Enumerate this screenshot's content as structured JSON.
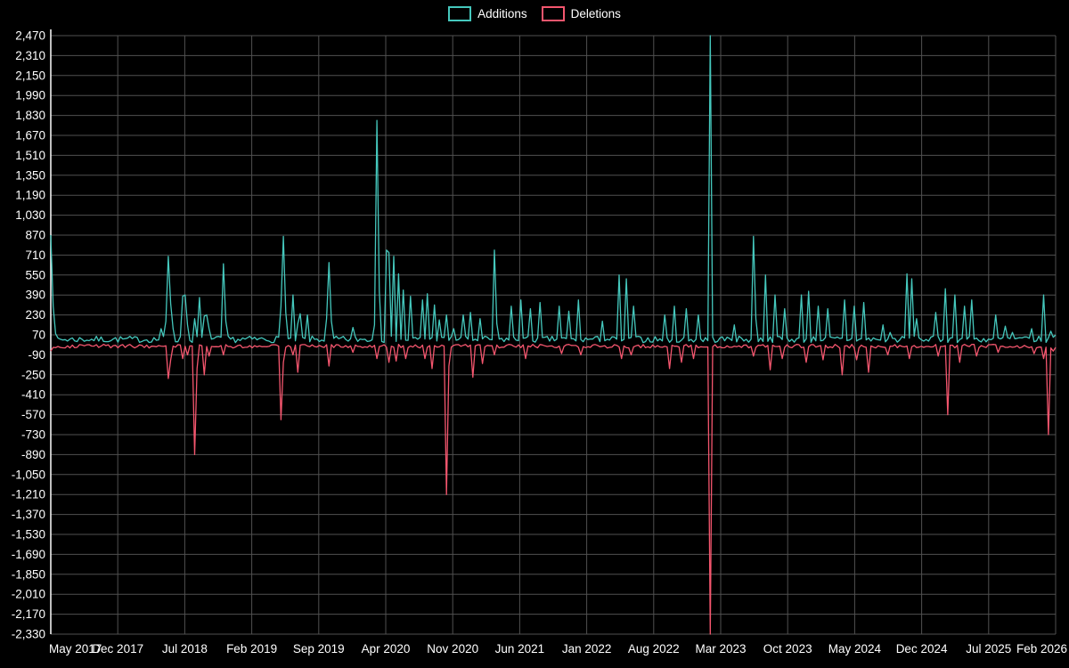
{
  "legend": {
    "items": [
      {
        "label": "Additions",
        "color": "#45c8bd"
      },
      {
        "label": "Deletions",
        "color": "#f4566e"
      }
    ]
  },
  "chart_data": {
    "type": "line",
    "title": "",
    "series_names": [
      "Additions",
      "Deletions"
    ],
    "x_tick_labels": [
      "May 2017",
      "Dec 2017",
      "Jul 2018",
      "Feb 2019",
      "Sep 2019",
      "Apr 2020",
      "Nov 2020",
      "Jun 2021",
      "Jan 2022",
      "Aug 2022",
      "Mar 2023",
      "Oct 2023",
      "May 2024",
      "Dec 2024",
      "Jul 2025",
      "Feb 2026"
    ],
    "y_ticks": [
      2470,
      2310,
      2150,
      1990,
      1830,
      1670,
      1510,
      1350,
      1190,
      1030,
      870,
      710,
      550,
      390,
      230,
      70,
      -90,
      -250,
      -410,
      -570,
      -730,
      -890,
      -1050,
      -1210,
      -1370,
      -1530,
      -1690,
      -1850,
      -2010,
      -2170,
      -2330
    ],
    "y_tick_labels": [
      "2,470",
      "2,310",
      "2,150",
      "1,990",
      "1,830",
      "1,670",
      "1,510",
      "1,350",
      "1,190",
      "1,030",
      "870",
      "710",
      "550",
      "390",
      "230",
      "70",
      "-90",
      "-250",
      "-410",
      "-570",
      "-730",
      "-890",
      "-1,050",
      "-1,210",
      "-1,370",
      "-1,530",
      "-1,690",
      "-1,850",
      "-2,010",
      "-2,170",
      "-2,330"
    ],
    "ylim": [
      -2330,
      2470
    ],
    "grid": true,
    "background": "#000000",
    "grid_color": "#515151",
    "axis_color": "#ffffff",
    "text_color": "#ffffff",
    "n_points": 420,
    "noise_seed": 7,
    "baseline": {
      "additions": [
        8,
        60
      ],
      "deletions": [
        -35,
        -6
      ]
    },
    "spikes_format": "[week_index, value] ; week 0 = May 2017, week 419 = Feb 2026",
    "series": [
      {
        "name": "Additions",
        "color": "#45c8bd",
        "spikes": [
          [
            0,
            870
          ],
          [
            1,
            300
          ],
          [
            2,
            80
          ],
          [
            46,
            120
          ],
          [
            48,
            180
          ],
          [
            49,
            700
          ],
          [
            50,
            320
          ],
          [
            51,
            120
          ],
          [
            55,
            380
          ],
          [
            56,
            390
          ],
          [
            57,
            150
          ],
          [
            60,
            200
          ],
          [
            62,
            370
          ],
          [
            64,
            220
          ],
          [
            65,
            230
          ],
          [
            66,
            120
          ],
          [
            72,
            640
          ],
          [
            73,
            180
          ],
          [
            96,
            300
          ],
          [
            97,
            860
          ],
          [
            98,
            250
          ],
          [
            101,
            390
          ],
          [
            103,
            160
          ],
          [
            104,
            240
          ],
          [
            107,
            230
          ],
          [
            115,
            200
          ],
          [
            116,
            650
          ],
          [
            117,
            180
          ],
          [
            126,
            130
          ],
          [
            135,
            150
          ],
          [
            136,
            1790
          ],
          [
            137,
            420
          ],
          [
            140,
            750
          ],
          [
            141,
            730
          ],
          [
            143,
            700
          ],
          [
            145,
            560
          ],
          [
            147,
            430
          ],
          [
            150,
            380
          ],
          [
            155,
            350
          ],
          [
            157,
            400
          ],
          [
            160,
            310
          ],
          [
            162,
            190
          ],
          [
            165,
            230
          ],
          [
            168,
            120
          ],
          [
            172,
            230
          ],
          [
            175,
            250
          ],
          [
            179,
            200
          ],
          [
            185,
            750
          ],
          [
            186,
            160
          ],
          [
            192,
            300
          ],
          [
            196,
            350
          ],
          [
            200,
            280
          ],
          [
            204,
            330
          ],
          [
            212,
            300
          ],
          [
            216,
            260
          ],
          [
            220,
            350
          ],
          [
            230,
            180
          ],
          [
            237,
            550
          ],
          [
            240,
            520
          ],
          [
            243,
            300
          ],
          [
            256,
            230
          ],
          [
            260,
            300
          ],
          [
            265,
            280
          ],
          [
            270,
            230
          ],
          [
            275,
            2470
          ],
          [
            285,
            150
          ],
          [
            293,
            860
          ],
          [
            294,
            200
          ],
          [
            298,
            550
          ],
          [
            302,
            390
          ],
          [
            306,
            280
          ],
          [
            313,
            390
          ],
          [
            316,
            420
          ],
          [
            320,
            300
          ],
          [
            324,
            280
          ],
          [
            331,
            350
          ],
          [
            335,
            300
          ],
          [
            339,
            330
          ],
          [
            347,
            150
          ],
          [
            350,
            90
          ],
          [
            357,
            560
          ],
          [
            359,
            520
          ],
          [
            361,
            200
          ],
          [
            369,
            250
          ],
          [
            373,
            440
          ],
          [
            377,
            390
          ],
          [
            381,
            300
          ],
          [
            384,
            350
          ],
          [
            394,
            230
          ],
          [
            398,
            140
          ],
          [
            401,
            90
          ],
          [
            409,
            120
          ],
          [
            414,
            390
          ],
          [
            417,
            100
          ],
          [
            419,
            70
          ]
        ]
      },
      {
        "name": "Deletions",
        "color": "#f4566e",
        "spikes": [
          [
            0,
            -60
          ],
          [
            1,
            -30
          ],
          [
            49,
            -280
          ],
          [
            50,
            -130
          ],
          [
            55,
            -120
          ],
          [
            57,
            -90
          ],
          [
            60,
            -890
          ],
          [
            61,
            -200
          ],
          [
            64,
            -250
          ],
          [
            66,
            -100
          ],
          [
            72,
            -90
          ],
          [
            96,
            -610
          ],
          [
            97,
            -150
          ],
          [
            101,
            -90
          ],
          [
            103,
            -230
          ],
          [
            116,
            -180
          ],
          [
            126,
            -70
          ],
          [
            136,
            -120
          ],
          [
            141,
            -150
          ],
          [
            144,
            -140
          ],
          [
            148,
            -120
          ],
          [
            156,
            -120
          ],
          [
            159,
            -200
          ],
          [
            165,
            -1210
          ],
          [
            166,
            -180
          ],
          [
            176,
            -270
          ],
          [
            180,
            -160
          ],
          [
            185,
            -90
          ],
          [
            198,
            -120
          ],
          [
            213,
            -80
          ],
          [
            221,
            -90
          ],
          [
            238,
            -120
          ],
          [
            242,
            -90
          ],
          [
            258,
            -200
          ],
          [
            263,
            -150
          ],
          [
            268,
            -120
          ],
          [
            275,
            -2330
          ],
          [
            293,
            -100
          ],
          [
            300,
            -210
          ],
          [
            305,
            -120
          ],
          [
            315,
            -150
          ],
          [
            322,
            -130
          ],
          [
            330,
            -250
          ],
          [
            336,
            -130
          ],
          [
            341,
            -230
          ],
          [
            349,
            -90
          ],
          [
            358,
            -120
          ],
          [
            370,
            -100
          ],
          [
            374,
            -570
          ],
          [
            379,
            -150
          ],
          [
            386,
            -100
          ],
          [
            395,
            -70
          ],
          [
            410,
            -80
          ],
          [
            414,
            -120
          ],
          [
            416,
            -730
          ],
          [
            418,
            -60
          ]
        ]
      }
    ]
  }
}
